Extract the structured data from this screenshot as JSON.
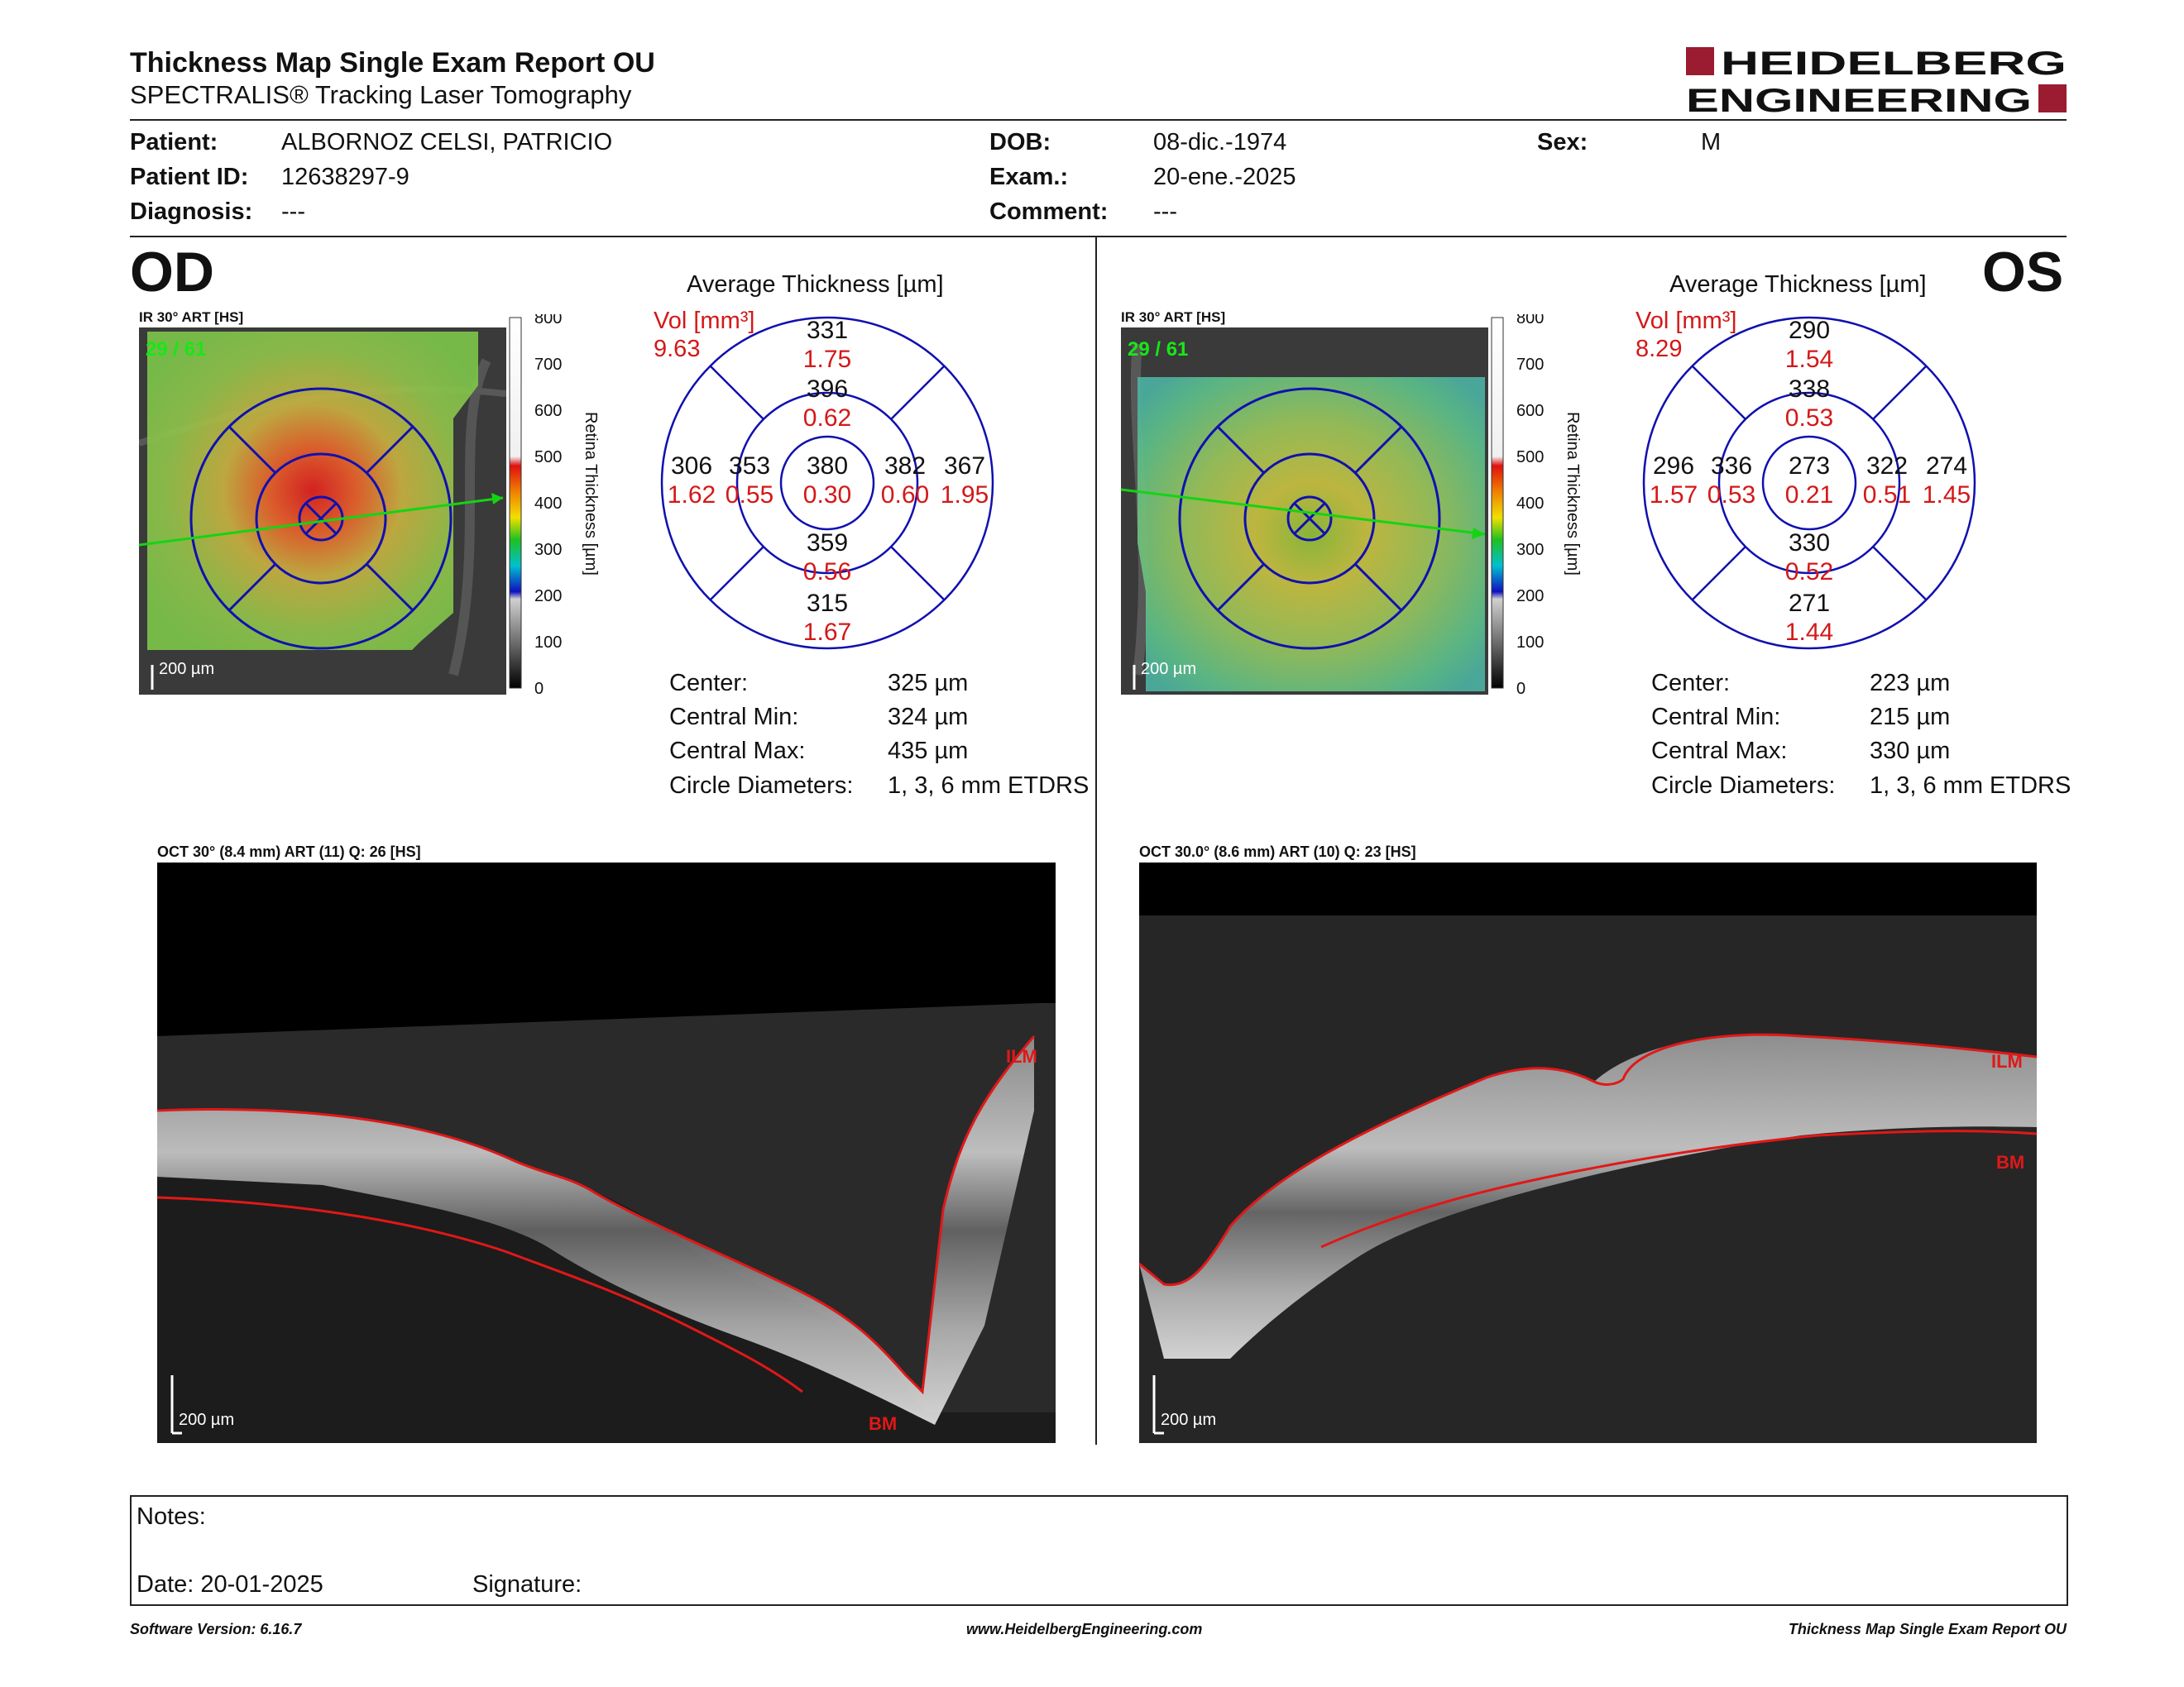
{
  "header": {
    "title": "Thickness Map Single Exam Report OU",
    "subtitle": "SPECTRALIS® Tracking Laser Tomography",
    "logo_line1": "HEIDELBERG",
    "logo_line2": "ENGINEERING",
    "brand_color": "#9b1b30"
  },
  "patient": {
    "patient_label": "Patient:",
    "patient_value": "ALBORNOZ CELSI, PATRICIO",
    "id_label": "Patient ID:",
    "id_value": "12638297-9",
    "diagnosis_label": "Diagnosis:",
    "diagnosis_value": "---",
    "dob_label": "DOB:",
    "dob_value": "08-dic.-1974",
    "exam_label": "Exam.:",
    "exam_value": "20-ene.-2025",
    "comment_label": "Comment:",
    "comment_value": "---",
    "sex_label": "Sex:",
    "sex_value": "M"
  },
  "od": {
    "eye": "OD",
    "ir_caption": "IR 30° ART [HS]",
    "frame_count": "29 / 61",
    "scale": "200 µm",
    "colorbar_ticks": [
      "800",
      "700",
      "600",
      "500",
      "400",
      "300",
      "200",
      "100",
      "0"
    ],
    "colorbar_label": "Retina Thickness [µm]",
    "grid_title": "Average Thickness [µm]",
    "vol_label": "Vol [mm³]",
    "vol_value": "9.63",
    "sectors": {
      "outer_superior": {
        "thk": "331",
        "vol": "1.75"
      },
      "inner_superior": {
        "thk": "396",
        "vol": "0.62"
      },
      "outer_temporal": {
        "thk": "306",
        "vol": "1.62"
      },
      "inner_temporal": {
        "thk": "353",
        "vol": "0.55"
      },
      "center": {
        "thk": "380",
        "vol": "0.30"
      },
      "inner_nasal": {
        "thk": "382",
        "vol": "0.60"
      },
      "outer_nasal": {
        "thk": "367",
        "vol": "1.95"
      },
      "inner_inferior": {
        "thk": "359",
        "vol": "0.56"
      },
      "outer_inferior": {
        "thk": "315",
        "vol": "1.67"
      }
    },
    "stats": {
      "center_label": "Center:",
      "center_value": "325 µm",
      "min_label": "Central Min:",
      "min_value": "324 µm",
      "max_label": "Central Max:",
      "max_value": "435 µm",
      "diam_label": "Circle Diameters:",
      "diam_value": "1, 3, 6 mm ETDRS"
    },
    "oct_caption": "OCT 30° (8.4 mm) ART (11) Q: 26 [HS]",
    "oct_scale": "200 µm",
    "ilm": "ILM",
    "bm": "BM"
  },
  "os": {
    "eye": "OS",
    "ir_caption": "IR 30° ART [HS]",
    "frame_count": "29 / 61",
    "scale": "200 µm",
    "colorbar_ticks": [
      "800",
      "700",
      "600",
      "500",
      "400",
      "300",
      "200",
      "100",
      "0"
    ],
    "colorbar_label": "Retina Thickness [µm]",
    "grid_title": "Average Thickness [µm]",
    "vol_label": "Vol [mm³]",
    "vol_value": "8.29",
    "sectors": {
      "outer_superior": {
        "thk": "290",
        "vol": "1.54"
      },
      "inner_superior": {
        "thk": "338",
        "vol": "0.53"
      },
      "outer_temporal": {
        "thk": "296",
        "vol": "1.57"
      },
      "inner_temporal": {
        "thk": "336",
        "vol": "0.53"
      },
      "center": {
        "thk": "273",
        "vol": "0.21"
      },
      "inner_nasal": {
        "thk": "322",
        "vol": "0.51"
      },
      "outer_nasal": {
        "thk": "274",
        "vol": "1.45"
      },
      "inner_inferior": {
        "thk": "330",
        "vol": "0.52"
      },
      "outer_inferior": {
        "thk": "271",
        "vol": "1.44"
      }
    },
    "stats": {
      "center_label": "Center:",
      "center_value": "223 µm",
      "min_label": "Central Min:",
      "min_value": "215 µm",
      "max_label": "Central Max:",
      "max_value": "330 µm",
      "diam_label": "Circle Diameters:",
      "diam_value": "1, 3, 6 mm ETDRS"
    },
    "oct_caption": "OCT 30.0° (8.6 mm) ART (10) Q: 23 [HS]",
    "oct_scale": "200 µm",
    "ilm": "ILM",
    "bm": "BM"
  },
  "notes": {
    "notes_label": "Notes:",
    "date_label": "Date: 20-01-2025",
    "signature_label": "Signature:"
  },
  "footer": {
    "software": "Software Version: 6.16.7",
    "website": "www.HeidelbergEngineering.com",
    "report": "Thickness Map Single Exam Report OU"
  }
}
